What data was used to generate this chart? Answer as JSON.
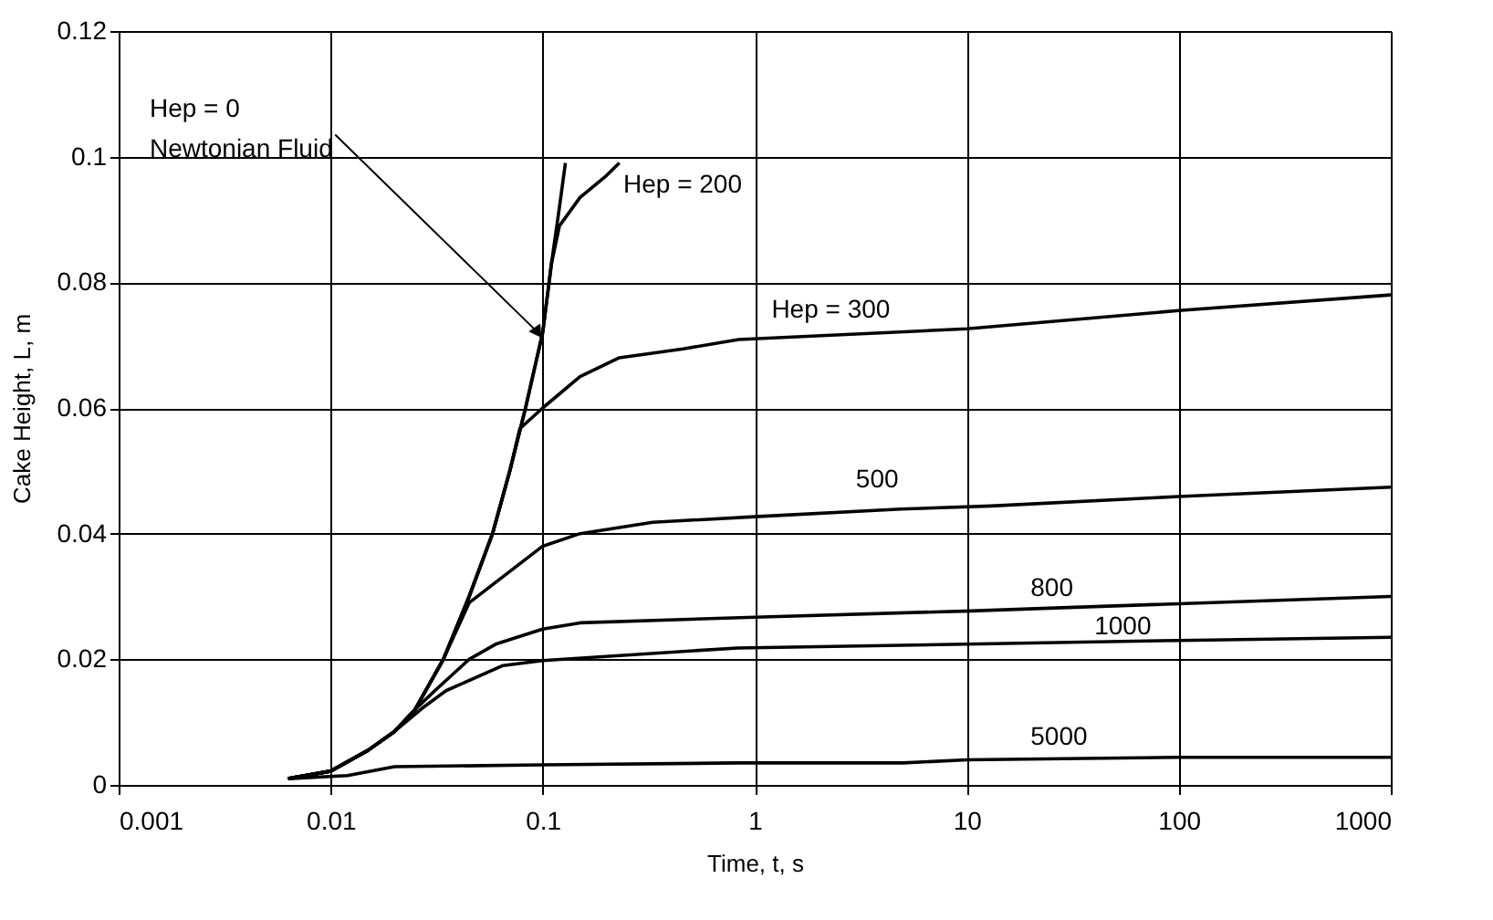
{
  "chart_data": {
    "type": "line",
    "xlabel": "Time, t, s",
    "ylabel": "Cake Height, L, m",
    "log": "x",
    "xlim": [
      0.001,
      1000
    ],
    "xticks": [
      0.001,
      0.01,
      0.1,
      1,
      10,
      100,
      1000
    ],
    "ylim": [
      0,
      0.12
    ],
    "yticks": [
      0,
      0.02,
      0.04,
      0.06,
      0.08,
      0.1,
      0.12
    ],
    "grid": true,
    "legend": false,
    "marker": "none",
    "line_style": "solid",
    "annotations": [
      {
        "text": "Hep = 0\nNewtonian Fluid",
        "x": 0.095,
        "y": 0.072
      }
    ],
    "series": [
      {
        "color": "#000000",
        "x": [
          0.0063,
          0.01,
          0.015,
          0.02,
          0.025,
          0.034,
          0.045,
          0.058,
          0.07,
          0.083,
          0.1,
          0.11,
          0.12,
          0.128
        ],
        "values": [
          0.001,
          0.0022,
          0.0055,
          0.0085,
          0.012,
          0.02,
          0.03,
          0.04,
          0.05,
          0.06,
          0.072,
          0.083,
          0.092,
          0.099
        ]
      },
      {
        "name": "Hep = 200",
        "color": "#000000",
        "x": [
          0.0063,
          0.01,
          0.015,
          0.02,
          0.025,
          0.034,
          0.045,
          0.058,
          0.07,
          0.083,
          0.1,
          0.11,
          0.12,
          0.15,
          0.2,
          0.23
        ],
        "values": [
          0.001,
          0.0022,
          0.0055,
          0.0085,
          0.012,
          0.02,
          0.03,
          0.04,
          0.05,
          0.06,
          0.072,
          0.083,
          0.089,
          0.0935,
          0.097,
          0.099
        ]
      },
      {
        "name": "Hep = 300",
        "color": "#000000",
        "x": [
          0.0063,
          0.01,
          0.015,
          0.02,
          0.025,
          0.034,
          0.045,
          0.058,
          0.07,
          0.078,
          0.1,
          0.15,
          0.23,
          0.46,
          0.84,
          10,
          100,
          1000
        ],
        "values": [
          0.001,
          0.0022,
          0.0055,
          0.0085,
          0.012,
          0.02,
          0.03,
          0.04,
          0.05,
          0.0567,
          0.06,
          0.065,
          0.068,
          0.0694,
          0.0709,
          0.0726,
          0.0755,
          0.078
        ]
      },
      {
        "name": "500",
        "color": "#000000",
        "x": [
          0.0063,
          0.01,
          0.015,
          0.02,
          0.025,
          0.034,
          0.045,
          0.1,
          0.15,
          0.33,
          1,
          4.9,
          13,
          100,
          1000
        ],
        "values": [
          0.001,
          0.0022,
          0.0055,
          0.0085,
          0.012,
          0.02,
          0.029,
          0.038,
          0.04,
          0.0418,
          0.0427,
          0.0439,
          0.0444,
          0.0459,
          0.0474
        ]
      },
      {
        "name": "800",
        "color": "#000000",
        "x": [
          0.0063,
          0.01,
          0.015,
          0.02,
          0.025,
          0.031,
          0.045,
          0.06,
          0.1,
          0.15,
          1,
          10.5,
          28,
          1000
        ],
        "values": [
          0.001,
          0.0022,
          0.0055,
          0.0085,
          0.012,
          0.015,
          0.02,
          0.0224,
          0.0248,
          0.0258,
          0.0267,
          0.0277,
          0.0282,
          0.03
        ]
      },
      {
        "name": "1000",
        "color": "#000000",
        "x": [
          0.0063,
          0.01,
          0.015,
          0.02,
          0.027,
          0.035,
          0.065,
          0.1,
          0.83,
          10,
          100,
          1000
        ],
        "values": [
          0.001,
          0.0022,
          0.0055,
          0.0085,
          0.0122,
          0.015,
          0.019,
          0.0198,
          0.0218,
          0.0224,
          0.023,
          0.0235
        ]
      },
      {
        "name": "5000",
        "color": "#000000",
        "x": [
          0.0063,
          0.012,
          0.02,
          0.1,
          0.83,
          5,
          10,
          100,
          1000
        ],
        "values": [
          0.001,
          0.0015,
          0.0029,
          0.0032,
          0.0035,
          0.0035,
          0.004,
          0.0044,
          0.0044
        ]
      }
    ]
  }
}
